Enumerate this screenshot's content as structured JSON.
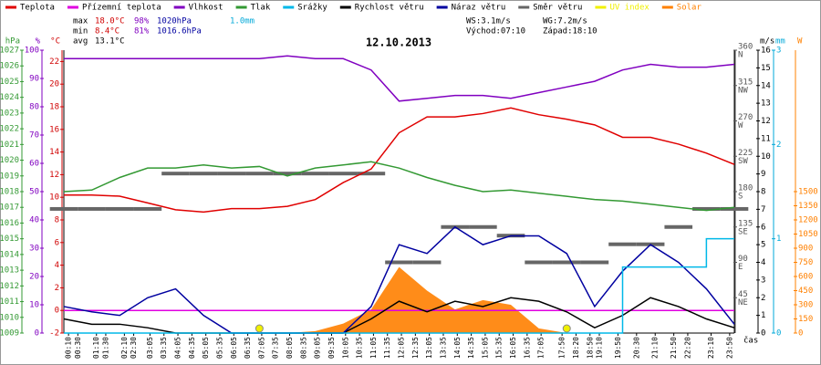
{
  "chart_data": {
    "type": "line",
    "title": "12.10.2013",
    "x_label": "čas",
    "stats": {
      "max": "max",
      "max_temp": "18.0°C",
      "max_hum": "98%",
      "max_press": "1020hPa",
      "rain": "1.0mm",
      "min": "min",
      "min_temp": "8.4°C",
      "min_hum": "81%",
      "min_press": "1016.6hPa",
      "avg": "avg",
      "avg_temp": "13.1°C",
      "ws": "WS:3.1m/s",
      "wg": "WG:7.2m/s",
      "sunrise": "Východ:07:10",
      "sunset": "Západ:18:10"
    },
    "xlim": [
      0,
      24
    ],
    "x": [
      0,
      1,
      2,
      3,
      4,
      5,
      6,
      7,
      8,
      9,
      10,
      11,
      12,
      13,
      14,
      15,
      16,
      17,
      18,
      19,
      20,
      21,
      22,
      23,
      24
    ],
    "xticks": [
      {
        "value": 0.167,
        "label": "00:10"
      },
      {
        "value": 0.5,
        "label": "00:30"
      },
      {
        "value": 1.167,
        "label": "01:10"
      },
      {
        "value": 1.5,
        "label": "01:30"
      },
      {
        "value": 2.167,
        "label": "02:10"
      },
      {
        "value": 2.5,
        "label": "02:30"
      },
      {
        "value": 3.083,
        "label": "03:05"
      },
      {
        "value": 3.583,
        "label": "03:35"
      },
      {
        "value": 4.083,
        "label": "04:05"
      },
      {
        "value": 4.583,
        "label": "04:35"
      },
      {
        "value": 5.083,
        "label": "05:05"
      },
      {
        "value": 5.583,
        "label": "05:35"
      },
      {
        "value": 6.083,
        "label": "06:05"
      },
      {
        "value": 6.583,
        "label": "06:35"
      },
      {
        "value": 7.083,
        "label": "07:05"
      },
      {
        "value": 7.583,
        "label": "07:35"
      },
      {
        "value": 8.083,
        "label": "08:05"
      },
      {
        "value": 8.583,
        "label": "08:35"
      },
      {
        "value": 9.083,
        "label": "09:05"
      },
      {
        "value": 9.583,
        "label": "09:35"
      },
      {
        "value": 10.083,
        "label": "10:05"
      },
      {
        "value": 10.583,
        "label": "10:35"
      },
      {
        "value": 11.083,
        "label": "11:05"
      },
      {
        "value": 11.583,
        "label": "11:35"
      },
      {
        "value": 12.083,
        "label": "12:05"
      },
      {
        "value": 12.583,
        "label": "12:35"
      },
      {
        "value": 13.083,
        "label": "13:05"
      },
      {
        "value": 13.583,
        "label": "13:35"
      },
      {
        "value": 14.083,
        "label": "14:05"
      },
      {
        "value": 14.583,
        "label": "14:35"
      },
      {
        "value": 15.083,
        "label": "15:05"
      },
      {
        "value": 15.583,
        "label": "15:35"
      },
      {
        "value": 16.083,
        "label": "16:05"
      },
      {
        "value": 16.583,
        "label": "16:35"
      },
      {
        "value": 17.083,
        "label": "17:05"
      },
      {
        "value": 17.833,
        "label": "17:50"
      },
      {
        "value": 18.333,
        "label": "18:20"
      },
      {
        "value": 18.833,
        "label": "18:50"
      },
      {
        "value": 19.167,
        "label": "19:10"
      },
      {
        "value": 19.833,
        "label": "19:50"
      },
      {
        "value": 20.5,
        "label": "20:30"
      },
      {
        "value": 21.167,
        "label": "21:10"
      },
      {
        "value": 21.833,
        "label": "21:50"
      },
      {
        "value": 22.333,
        "label": "22:20"
      },
      {
        "value": 23.167,
        "label": "23:10"
      },
      {
        "value": 23.833,
        "label": "23:50"
      }
    ],
    "axes": {
      "hpa": {
        "label": "hPa",
        "color": "#339933",
        "lim": [
          1009,
          1027
        ],
        "ticks": [
          1009,
          1010,
          1011,
          1012,
          1013,
          1014,
          1015,
          1016,
          1017,
          1018,
          1019,
          1020,
          1021,
          1022,
          1023,
          1024,
          1025,
          1026,
          1027
        ]
      },
      "hum": {
        "label": "%",
        "color": "#8000c0",
        "lim": [
          0,
          100
        ],
        "ticks": [
          0,
          10,
          20,
          30,
          40,
          50,
          60,
          70,
          80,
          90,
          100
        ]
      },
      "temp": {
        "label": "°C",
        "color": "#d00000",
        "lim": [
          -2,
          23
        ],
        "ticks": [
          -2,
          0,
          2,
          4,
          6,
          8,
          10,
          12,
          14,
          16,
          18,
          20,
          22
        ]
      },
      "dir": {
        "label": "",
        "color": "#555555",
        "lim": [
          0,
          360
        ],
        "ticks": [
          45,
          90,
          135,
          180,
          225,
          270,
          315,
          360
        ],
        "compass": [
          "NE",
          "E",
          "SE",
          "S",
          "SW",
          "W",
          "NW",
          "N"
        ]
      },
      "ms": {
        "label": "m/s",
        "color": "#000000",
        "lim": [
          0,
          16
        ],
        "ticks": [
          0,
          1,
          2,
          3,
          4,
          5,
          6,
          7,
          8,
          9,
          10,
          11,
          12,
          13,
          14,
          15,
          16
        ]
      },
      "mm": {
        "label": "mm",
        "color": "#00a8d8",
        "lim": [
          0,
          3
        ],
        "ticks": [
          0,
          1,
          2,
          3
        ]
      },
      "w": {
        "label": "W",
        "color": "#ff8000",
        "lim": [
          0,
          3000
        ],
        "ticks": [
          0,
          150,
          300,
          450,
          600,
          750,
          900,
          1050,
          1200,
          1350,
          1500
        ]
      }
    },
    "series": [
      {
        "name": "Teplota",
        "color": "#e00000",
        "axis": "temp",
        "style": "line",
        "values": [
          10.2,
          10.2,
          10.1,
          9.5,
          8.9,
          8.7,
          9.0,
          9.0,
          9.2,
          9.8,
          11.3,
          12.5,
          15.7,
          17.1,
          17.1,
          17.4,
          17.9,
          17.3,
          16.9,
          16.4,
          15.3,
          15.3,
          14.7,
          13.9,
          12.9
        ]
      },
      {
        "name": "Přízemní teplota",
        "color": "#e000e0",
        "axis": "temp",
        "style": "line",
        "values": [
          0,
          0,
          0,
          0,
          0,
          0,
          0,
          0,
          0,
          0,
          0,
          0,
          0,
          0,
          0,
          0,
          0,
          0,
          0,
          0,
          0,
          0,
          0,
          0,
          0
        ]
      },
      {
        "name": "Vlhkost",
        "color": "#8000c0",
        "axis": "hum",
        "style": "line",
        "values": [
          97,
          97,
          97,
          97,
          97,
          97,
          97,
          97,
          98,
          97,
          97,
          93,
          82,
          83,
          84,
          84,
          83,
          85,
          87,
          89,
          93,
          95,
          94,
          94,
          95
        ]
      },
      {
        "name": "Tlak",
        "color": "#339933",
        "axis": "hpa",
        "style": "line",
        "values": [
          1018.0,
          1018.1,
          1018.9,
          1019.5,
          1019.5,
          1019.7,
          1019.5,
          1019.6,
          1019.0,
          1019.5,
          1019.7,
          1019.9,
          1019.5,
          1018.9,
          1018.4,
          1018.0,
          1018.1,
          1017.9,
          1017.7,
          1017.5,
          1017.4,
          1017.2,
          1017.0,
          1016.8,
          1017.0
        ]
      },
      {
        "name": "Srážky",
        "color": "#00b8e8",
        "axis": "mm",
        "style": "step",
        "values": [
          0,
          0,
          0,
          0,
          0,
          0,
          0,
          0,
          0,
          0,
          0,
          0,
          0,
          0,
          0,
          0,
          0,
          0,
          0,
          0,
          0.7,
          0.7,
          0.7,
          1.0,
          1.0
        ]
      },
      {
        "name": "Rychlost větru",
        "color": "#000000",
        "axis": "ms",
        "style": "line",
        "values": [
          0.8,
          0.5,
          0.5,
          0.3,
          0,
          0,
          0,
          0,
          0,
          0,
          0,
          0.8,
          1.8,
          1.2,
          1.8,
          1.5,
          2.0,
          1.8,
          1.2,
          0.3,
          1.0,
          2.0,
          1.5,
          0.8,
          0.3
        ]
      },
      {
        "name": "Náraz větru",
        "color": "#0000a0",
        "axis": "ms",
        "style": "line",
        "values": [
          1.5,
          1.2,
          1.0,
          2.0,
          2.5,
          1.0,
          0,
          0,
          0,
          0,
          0,
          1.5,
          5.0,
          4.5,
          6.0,
          5.0,
          5.5,
          5.5,
          4.5,
          1.5,
          3.5,
          5.0,
          4.0,
          2.5,
          0.5
        ]
      },
      {
        "name": "Směr větru",
        "color": "#666666",
        "axis": "dir",
        "style": "dash",
        "values": [
          158,
          158,
          158,
          158,
          203,
          203,
          203,
          203,
          203,
          203,
          203,
          203,
          90,
          90,
          135,
          135,
          124,
          90,
          90,
          90,
          113,
          113,
          135,
          158,
          158
        ]
      },
      {
        "name": "UV index",
        "color": "#f0f000",
        "axis": "w",
        "style": "dot",
        "values": [
          null,
          null,
          null,
          null,
          null,
          null,
          null,
          0,
          null,
          null,
          null,
          null,
          null,
          null,
          null,
          null,
          null,
          null,
          0,
          null,
          null,
          null,
          null,
          null,
          null
        ]
      },
      {
        "name": "Solar",
        "color": "#ff8000",
        "axis": "w",
        "style": "area",
        "values": [
          0,
          0,
          0,
          0,
          0,
          0,
          0,
          0,
          0,
          20,
          100,
          250,
          700,
          450,
          250,
          350,
          300,
          50,
          0,
          0,
          0,
          0,
          0,
          0,
          0
        ]
      }
    ]
  }
}
